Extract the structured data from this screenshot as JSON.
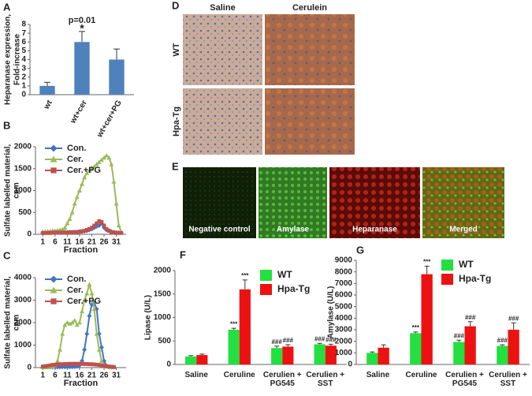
{
  "chart_data": [
    {
      "type": "bar",
      "panel": "A",
      "y_label": [
        "Heparanase expression,",
        "Fold-increase"
      ],
      "categories": [
        "wt",
        "wt+cer",
        "wt+cer+PG"
      ],
      "values": [
        1,
        6,
        4
      ],
      "errors": [
        0.4,
        1.2,
        1.2
      ],
      "color": "#4f81bd",
      "ylim": [
        0,
        8
      ],
      "yticks": [
        0,
        1,
        2,
        3,
        4,
        5,
        6,
        7,
        8
      ],
      "p_value": "p=0.01",
      "significance": "*"
    },
    {
      "type": "line",
      "panel": "B",
      "y_label": [
        "Sulfate labelled material,",
        "cpm"
      ],
      "x_label": "Fraction",
      "x": [
        1,
        2,
        3,
        4,
        5,
        6,
        7,
        8,
        9,
        10,
        11,
        12,
        13,
        14,
        15,
        16,
        17,
        18,
        19,
        20,
        21,
        22,
        23,
        24,
        25,
        26,
        27,
        28,
        29,
        30,
        31,
        32,
        33
      ],
      "series": [
        {
          "name": "Con.",
          "color": "#4472c4",
          "marker": "diamond",
          "values": [
            40,
            40,
            40,
            40,
            50,
            50,
            50,
            50,
            50,
            50,
            50,
            50,
            50,
            50,
            50,
            60,
            60,
            70,
            80,
            100,
            120,
            150,
            180,
            200,
            250,
            150,
            100,
            80,
            60,
            50,
            40,
            40,
            40
          ]
        },
        {
          "name": "Cer.",
          "color": "#9bbb59",
          "marker": "triangle",
          "values": [
            60,
            60,
            70,
            70,
            80,
            80,
            90,
            100,
            110,
            150,
            250,
            350,
            500,
            700,
            850,
            1000,
            1150,
            1300,
            1400,
            1450,
            1500,
            1550,
            1600,
            1650,
            1700,
            1750,
            1800,
            1750,
            1600,
            1200,
            700,
            200,
            60
          ]
        },
        {
          "name": "Cer.+PG",
          "color": "#c0504d",
          "marker": "square",
          "values": [
            30,
            30,
            30,
            30,
            40,
            40,
            40,
            40,
            40,
            40,
            40,
            40,
            50,
            50,
            50,
            60,
            70,
            80,
            100,
            120,
            150,
            200,
            250,
            300,
            280,
            200,
            120,
            80,
            50,
            40,
            30,
            30,
            30
          ]
        }
      ],
      "xlim": [
        -2,
        35
      ],
      "xticks": [
        1,
        6,
        11,
        16,
        21,
        26,
        31
      ],
      "ylim": [
        0,
        2000
      ],
      "yticks": [
        0,
        500,
        1000,
        1500,
        2000
      ]
    },
    {
      "type": "line",
      "panel": "C",
      "y_label": [
        "Sulfate labelled material,",
        "cpm"
      ],
      "x_label": "Fraction",
      "x": [
        1,
        2,
        3,
        4,
        5,
        6,
        7,
        8,
        9,
        10,
        11,
        12,
        13,
        14,
        15,
        16,
        17,
        18,
        19,
        20,
        21,
        22,
        23,
        24,
        25,
        26,
        27,
        28,
        29,
        30
      ],
      "series": [
        {
          "name": "Con.",
          "color": "#4472c4",
          "marker": "diamond",
          "values": [
            20,
            20,
            20,
            20,
            20,
            20,
            20,
            20,
            30,
            30,
            30,
            30,
            30,
            40,
            50,
            100,
            300,
            800,
            1500,
            2300,
            2800,
            2900,
            2600,
            1500,
            900,
            300,
            80,
            30,
            20,
            20
          ]
        },
        {
          "name": "Cer.",
          "color": "#9bbb59",
          "marker": "triangle",
          "values": [
            20,
            20,
            20,
            30,
            50,
            100,
            300,
            800,
            1500,
            1900,
            2000,
            1950,
            2000,
            2100,
            1900,
            2000,
            2500,
            3000,
            3300,
            3700,
            3300,
            2600,
            1500,
            800,
            300,
            100,
            50,
            30,
            20,
            20
          ]
        },
        {
          "name": "Cer.+PG",
          "color": "#c0504d",
          "marker": "square",
          "values": [
            50,
            60,
            80,
            100,
            120,
            130,
            140,
            150,
            150,
            160,
            160,
            170,
            170,
            170,
            170,
            170,
            170,
            160,
            160,
            150,
            150,
            140,
            130,
            120,
            100,
            80,
            60,
            50,
            40,
            30
          ]
        }
      ],
      "xlim": [
        -2,
        35
      ],
      "xticks": [
        1,
        6,
        11,
        16,
        21,
        26,
        31
      ],
      "ylim": [
        0,
        4000
      ],
      "yticks": [
        0,
        1000,
        2000,
        3000,
        4000
      ]
    },
    {
      "type": "image_grid",
      "panel": "D",
      "columns": [
        "Saline",
        "Cerulein"
      ],
      "rows": [
        "WT",
        "Hpa-Tg"
      ]
    },
    {
      "type": "image_strip",
      "panel": "E",
      "labels": [
        "Negative control",
        "Amylase",
        "Heparanase",
        "Merged"
      ]
    },
    {
      "type": "grouped_bar",
      "panel": "F",
      "y_label": "Lipase (U/L)",
      "categories": [
        "Saline",
        "Ceruline",
        "Cerulien + PG545",
        "Cerulien + SST"
      ],
      "series": [
        {
          "name": "WT",
          "color": "#22e040",
          "values": [
            170,
            740,
            350,
            430
          ],
          "errors": [
            20,
            30,
            40,
            20
          ],
          "annotations": [
            null,
            "***",
            "###",
            "###"
          ]
        },
        {
          "name": "Hpa-Tg",
          "color": "#ee1111",
          "values": [
            200,
            1600,
            380,
            400
          ],
          "errors": [
            20,
            200,
            40,
            30
          ],
          "annotations": [
            null,
            "***",
            "###",
            "###"
          ]
        }
      ],
      "ylim": [
        0,
        2000
      ],
      "yticks": [
        0,
        500,
        1000,
        1500,
        2000
      ]
    },
    {
      "type": "grouped_bar",
      "panel": "G",
      "y_label": "Amylase (U/L)",
      "categories": [
        "Saline",
        "Ceruline",
        "Cerulien + PG545",
        "Cerulien + SST"
      ],
      "series": [
        {
          "name": "WT",
          "color": "#22e040",
          "values": [
            1000,
            2700,
            1950,
            1600
          ],
          "errors": [
            80,
            100,
            150,
            100
          ],
          "annotations": [
            null,
            "***",
            "###",
            "###"
          ]
        },
        {
          "name": "Hpa-Tg",
          "color": "#ee1111",
          "values": [
            1450,
            7800,
            3300,
            3000
          ],
          "errors": [
            250,
            700,
            400,
            600
          ],
          "annotations": [
            null,
            "***",
            "###",
            "###"
          ]
        }
      ],
      "ylim": [
        0,
        9000
      ],
      "yticks": [
        0,
        1000,
        2000,
        3000,
        4000,
        5000,
        6000,
        7000,
        8000,
        9000
      ]
    }
  ]
}
